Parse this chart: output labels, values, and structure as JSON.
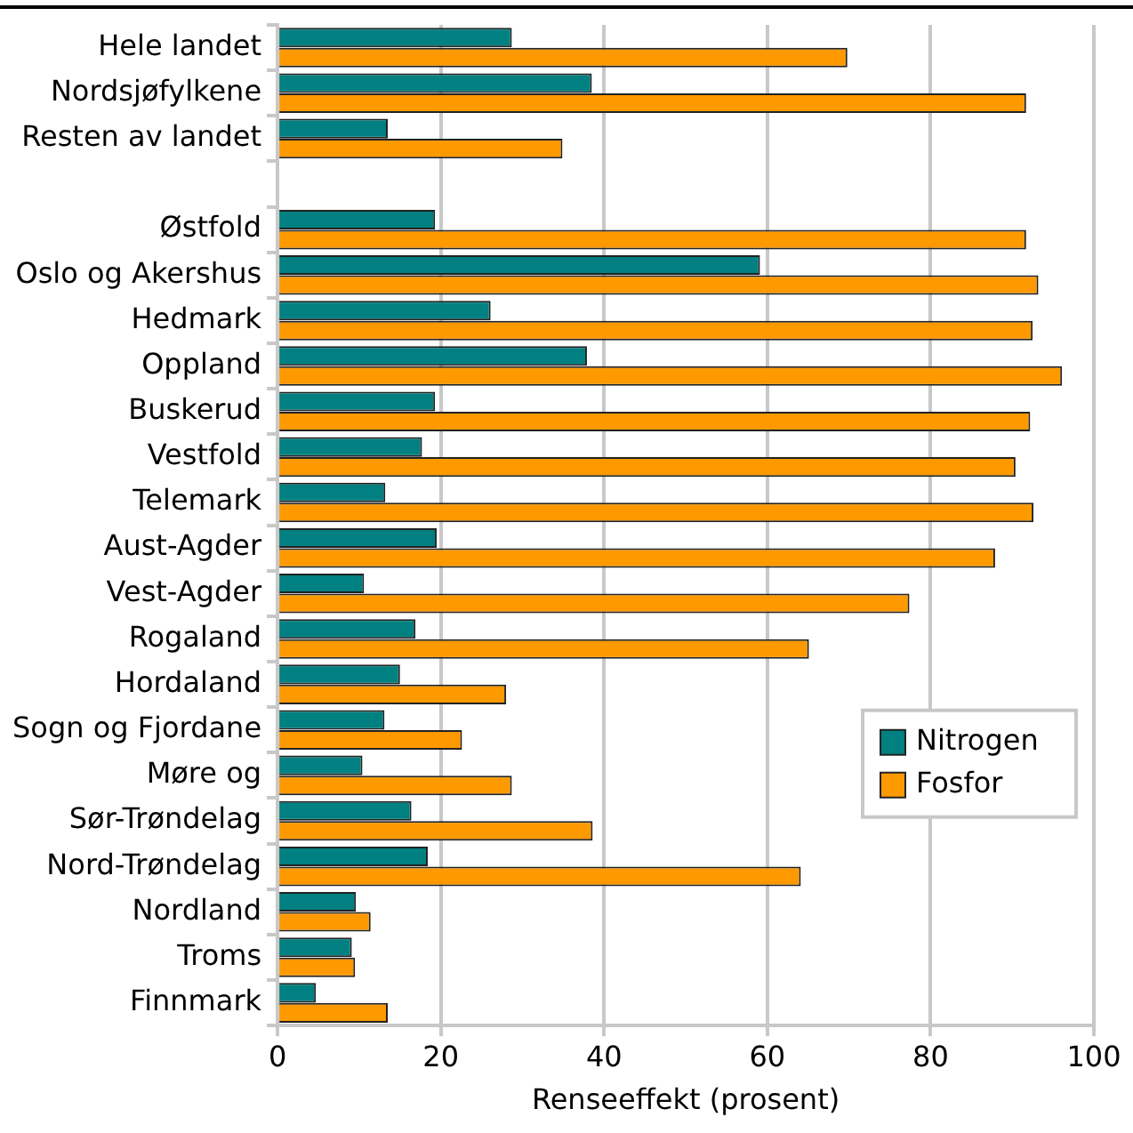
{
  "chart_data": {
    "type": "bar",
    "orientation": "horizontal",
    "xlabel": "Renseeffekt (prosent)",
    "categories": [
      "Hele landet",
      "Nordsjøfylkene",
      "Resten av landet",
      null,
      "Østfold",
      "Oslo og Akershus",
      "Hedmark",
      "Oppland",
      "Buskerud",
      "Vestfold",
      "Telemark",
      "Aust-Agder",
      "Vest-Agder",
      "Rogaland",
      "Hordaland",
      "Sogn og Fjordane",
      "Møre og",
      "Sør-Trøndelag",
      "Nord-Trøndelag",
      "Nordland",
      "Troms",
      "Finnmark"
    ],
    "series": [
      {
        "name": "Nitrogen",
        "color": "#008080",
        "values": [
          28.7,
          38.5,
          13.5,
          null,
          19.3,
          59.1,
          26.1,
          37.9,
          19.3,
          17.7,
          13.2,
          19.5,
          10.6,
          16.9,
          15.0,
          13.1,
          10.4,
          16.4,
          18.4,
          9.6,
          9.1,
          4.7
        ]
      },
      {
        "name": "Fosfor",
        "color": "#ff9900",
        "values": [
          69.8,
          91.7,
          34.9,
          null,
          91.7,
          93.2,
          92.5,
          96.1,
          92.2,
          90.4,
          92.6,
          87.9,
          77.4,
          65.1,
          28.0,
          22.6,
          28.7,
          38.6,
          64.1,
          11.4,
          9.5,
          13.5
        ]
      }
    ],
    "xlim": [
      0,
      100
    ],
    "xticks": [
      0,
      20,
      40,
      60,
      80,
      100
    ],
    "grid": "x",
    "legend": "bottom right"
  }
}
